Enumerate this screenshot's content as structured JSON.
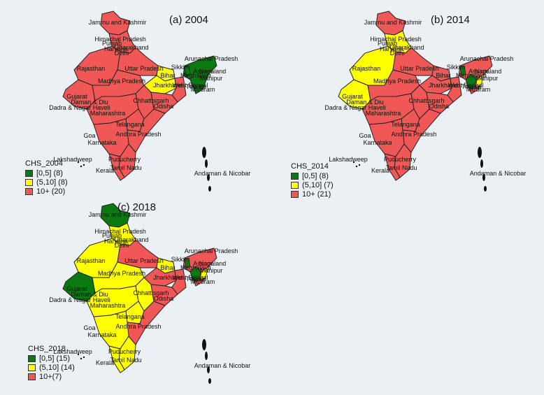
{
  "colors": {
    "low": "#0a7a10",
    "mid": "#ffff00",
    "high": "#f05858",
    "border": "#222222"
  },
  "panels": [
    {
      "key": "p2004",
      "title": "(a) 2004",
      "legend": {
        "title": "CHS_2004",
        "items": [
          {
            "label": "[0,5] (8)",
            "color": "#0a7a10"
          },
          {
            "label": "(5,10] (8)",
            "color": "#ffff00"
          },
          {
            "label": "10+ (20)",
            "color": "#f05858"
          }
        ]
      },
      "states": {
        "guj": "high",
        "cen": "high",
        "tel": "high",
        "bih": "mid",
        "jhk": "mid",
        "ne": "low",
        "jk": "high",
        "nw": "high"
      },
      "labels": [
        "Jammu and Kashmir",
        "Himachal Pradesh",
        "Punjab",
        "Uttarakhand",
        "Haryana",
        "Delhi",
        "Rajasthan",
        "Uttar Pradesh",
        "Sikkim",
        "Arunachal Pradesh",
        "Assam",
        "Nagaland",
        "Meghalaya",
        "Manipur",
        "Bihar",
        "Jharkhand",
        "West Bengal",
        "Tripura",
        "Mizoram",
        "Gujarat",
        "Madhya Pradesh",
        "Chhattisgarh",
        "Odisha",
        "Daman & Diu",
        "Dadra & Nagar Haveli",
        "Maharashtra",
        "Telangana",
        "Goa",
        "Andhra Pradesh",
        "Karnataka",
        "Lakshadweep",
        "Puducherry",
        "Tamil Nadu",
        "Kerala",
        "Andaman & Nicobar"
      ]
    },
    {
      "key": "p2014",
      "title": "(b) 2014",
      "legend": {
        "title": "CHS_2014",
        "items": [
          {
            "label": "[0,5] (8)",
            "color": "#0a7a10"
          },
          {
            "label": "(5,10] (7)",
            "color": "#ffff00"
          },
          {
            "label": "10+ (21)",
            "color": "#f05858"
          }
        ]
      },
      "states": {
        "guj": "mid",
        "cen": "high",
        "tel": "high",
        "bih": "high",
        "jhk": "high",
        "ne": "mixed",
        "jk": "high",
        "nw": "mid"
      },
      "labels": [
        "Jammu and Kashmir",
        "Himachal Pradesh",
        "Punjab",
        "Uttarakhand",
        "Haryana",
        "Delhi",
        "Rajasthan",
        "Uttar Pradesh",
        "Sikkim",
        "Arunachal Pradesh",
        "Assam",
        "Nagaland",
        "Meghalaya",
        "Manipur",
        "Bihar",
        "Jharkhand",
        "West Bengal",
        "Tripura",
        "Mizoram",
        "Gujarat",
        "Madhya Pradesh",
        "Chhattisgarh",
        "Odisha",
        "Daman & Diu",
        "Dadra & Nagar Haveli",
        "Maharashtra",
        "Telangana",
        "Goa",
        "Andhra Pradesh",
        "Karnataka",
        "Lakshadweep",
        "Puducherry",
        "Tamil Nadu",
        "Kerala",
        "Andaman & Nicobar"
      ]
    },
    {
      "key": "p2018",
      "title": "(c) 2018",
      "legend": {
        "title": "CHS_2018",
        "items": [
          {
            "label": "[0,5] (15)",
            "color": "#0a7a10"
          },
          {
            "label": "(5,10] (14)",
            "color": "#ffff00"
          },
          {
            "label": "10+(7)",
            "color": "#f05858"
          }
        ]
      },
      "states": {
        "guj": "low",
        "cen": "mid",
        "tel": "mid",
        "bih": "mid",
        "jhk": "high",
        "ne": "mixed",
        "jk": "low",
        "nw": "mid"
      },
      "labels": [
        "Jammu and Kashmir",
        "Himachal Pradesh",
        "Punjab",
        "Uttarakhand",
        "Haryana",
        "Delhi",
        "Rajasthan",
        "Uttar Pradesh",
        "Sikkim",
        "Arunachal Pradesh",
        "Assam",
        "Nagaland",
        "Meghalaya",
        "Manipur",
        "Bihar",
        "Jharkhand",
        "West Bengal",
        "Tripura",
        "Mizoram",
        "Gujarat",
        "Madhya Pradesh",
        "Chhattisgarh",
        "Odisha",
        "Daman & Diu",
        "Dadra & Nagar Haveli",
        "Maharashtra",
        "Telangana",
        "Goa",
        "Andhra Pradesh",
        "Karnataka",
        "Lakshadweep",
        "Puducherry",
        "Tamil Nadu",
        "Kerala",
        "Andaman & Nicobar"
      ]
    }
  ]
}
